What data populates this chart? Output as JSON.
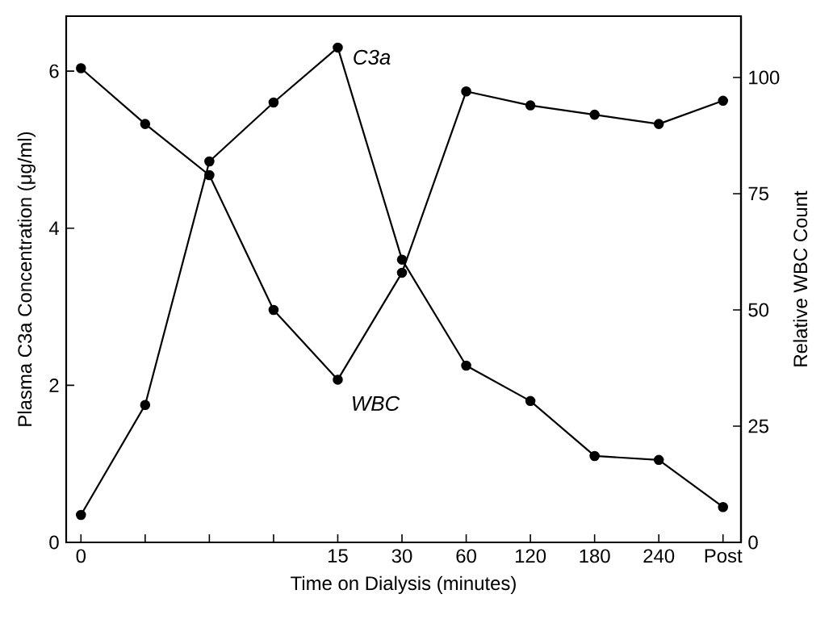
{
  "chart_data": {
    "type": "line",
    "xlabel": "Time on Dialysis (minutes)",
    "ylabel": "Plasma C3a Concentration (μg/ml)",
    "y2label": "Relative WBC Count",
    "categories": [
      "0",
      null,
      null,
      null,
      "15",
      "30",
      "60",
      "120",
      "180",
      "240",
      "Post"
    ],
    "series": [
      {
        "name": "C3a",
        "color": "#000000",
        "marker": "circle",
        "values": [
          0.35,
          1.75,
          4.85,
          5.6,
          6.3,
          3.6,
          2.25,
          1.8,
          1.1,
          1.05,
          0.45
        ]
      },
      {
        "name": "WBC",
        "color": "#000000",
        "marker": "circle",
        "axis": "y2",
        "values": [
          102,
          90,
          79,
          50,
          35,
          58,
          97,
          94,
          92,
          90,
          95
        ]
      }
    ],
    "ylim": [
      0,
      6.7
    ],
    "yticks": [
      0,
      2,
      4,
      6
    ],
    "y2lim": [
      0,
      113.2
    ],
    "y2ticks": [
      0,
      25,
      50,
      75,
      100
    ],
    "grid": false,
    "legend": false
  }
}
